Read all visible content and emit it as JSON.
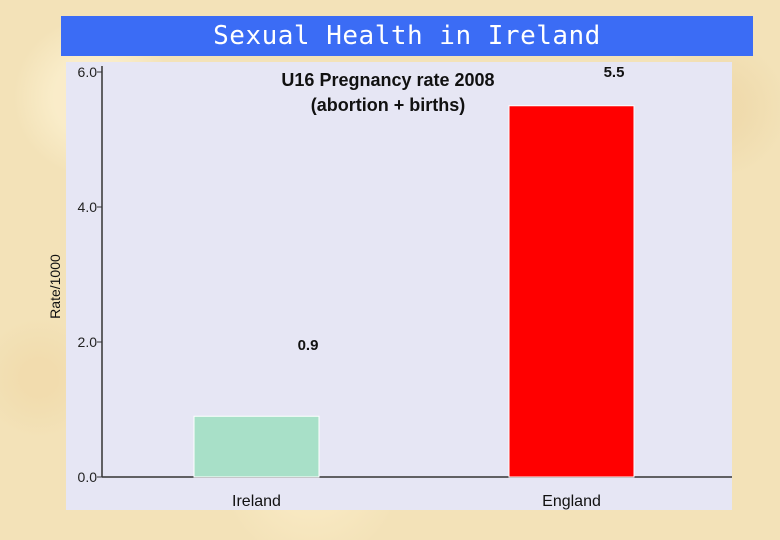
{
  "slide": {
    "title": "Sexual Health in Ireland"
  },
  "chart_data": {
    "type": "bar",
    "title_lines": [
      "U16 Pregnancy rate 2008",
      "(abortion + births)"
    ],
    "ylabel": "Rate/1000",
    "xlabel": "",
    "categories": [
      "Ireland",
      "England"
    ],
    "values": [
      0.9,
      5.5
    ],
    "value_labels": [
      "0.9",
      "5.5"
    ],
    "bar_colors": [
      "#a8e0c8",
      "#ff0000"
    ],
    "ylim": [
      0,
      6
    ],
    "yticks": [
      "0.0",
      "2.0",
      "4.0",
      "6.0"
    ],
    "grid": false,
    "legend": "none",
    "background": "#e6e6f4"
  }
}
